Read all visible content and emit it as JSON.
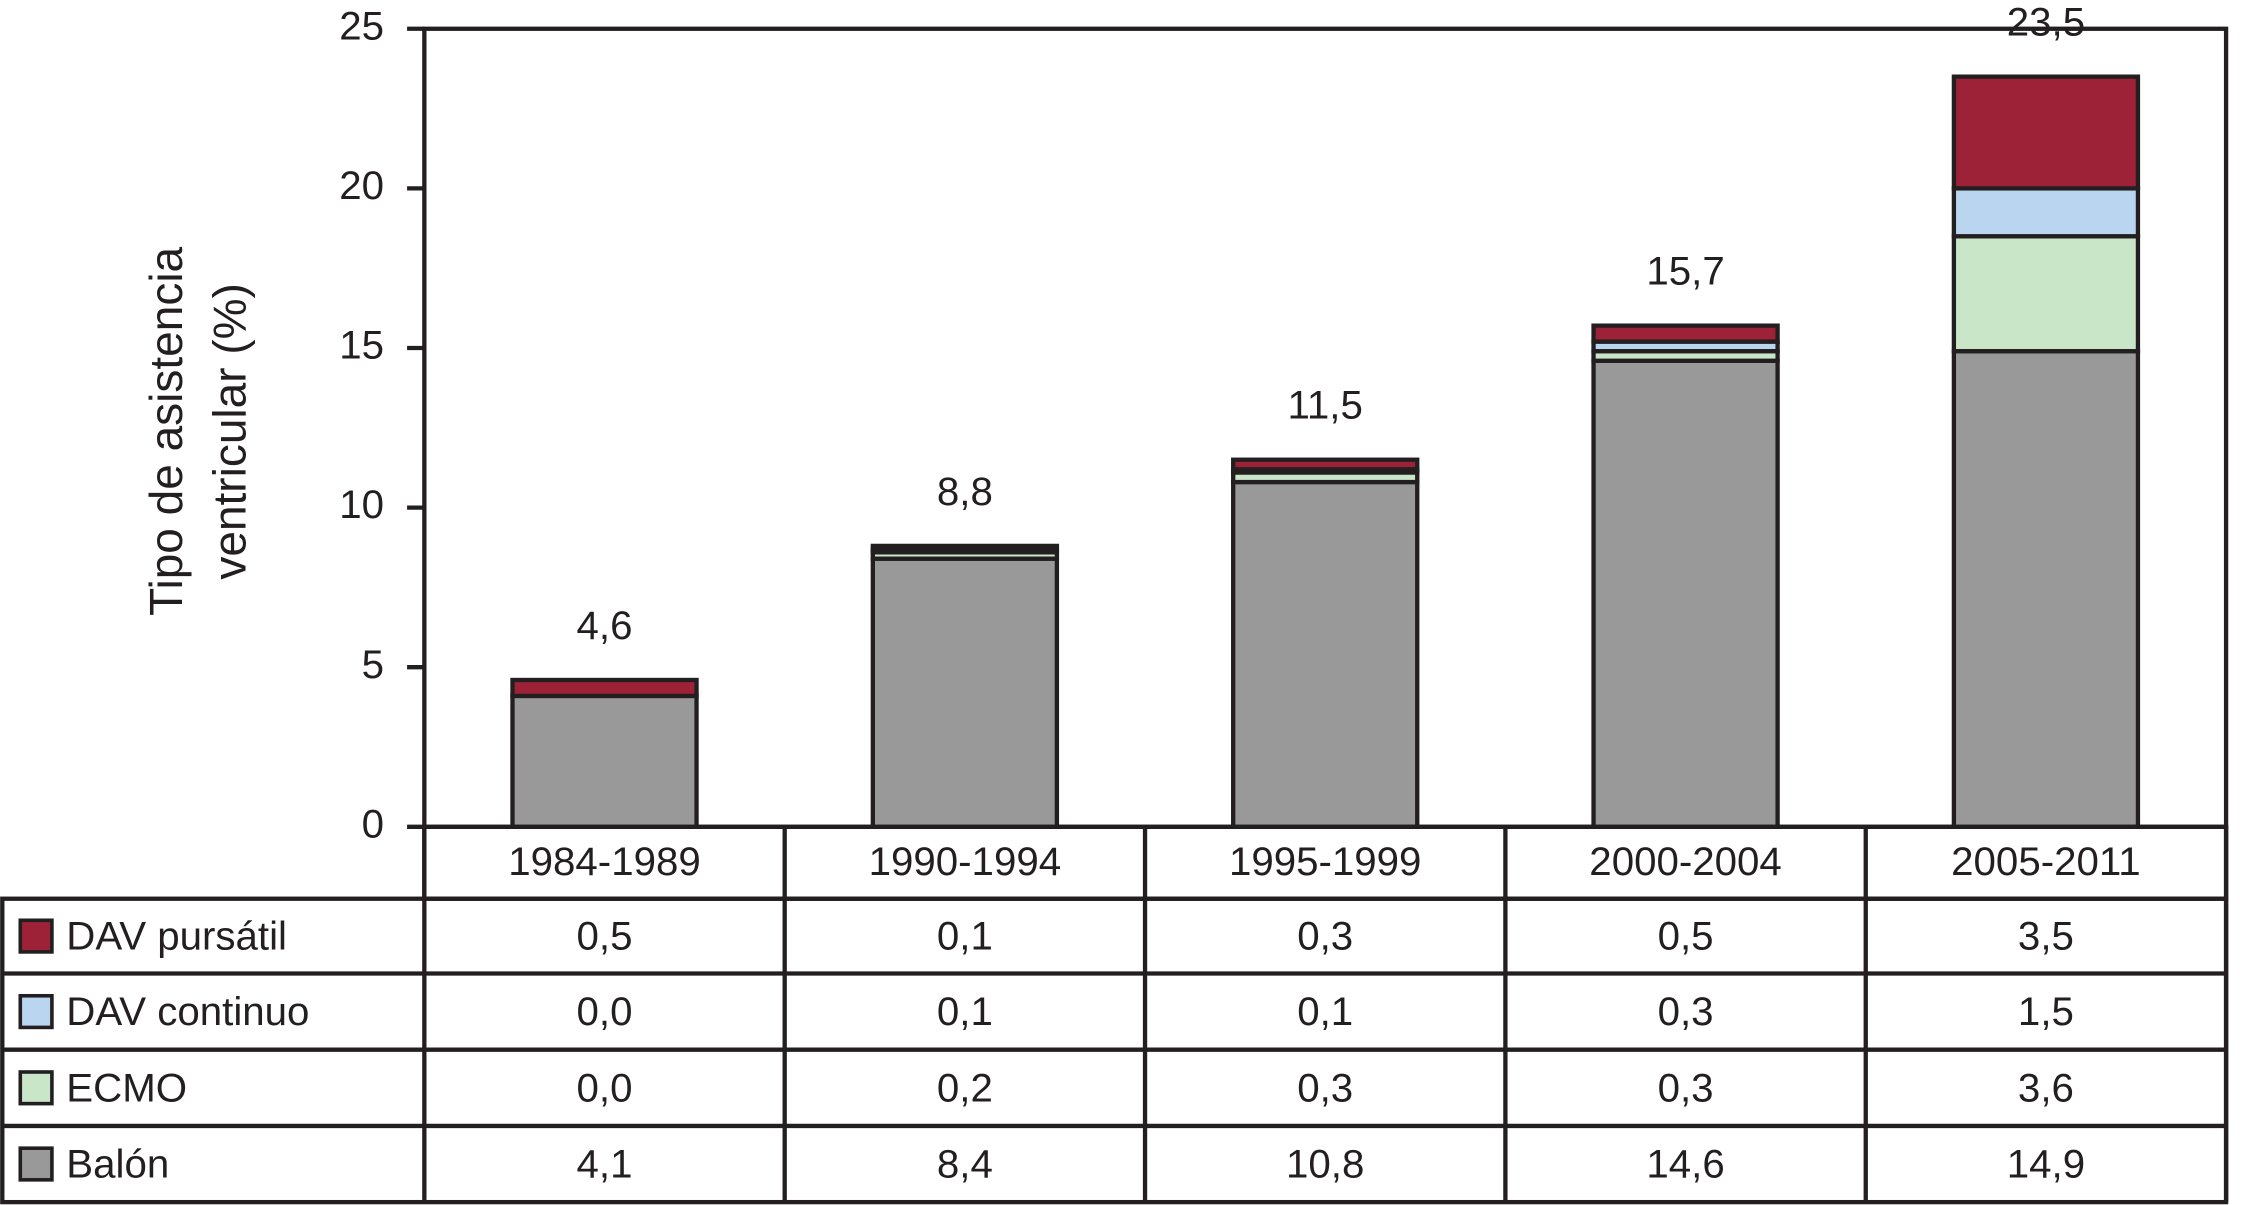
{
  "chart_data": {
    "type": "bar",
    "stacked": true,
    "ylabel": [
      "Tipo de asistencia",
      "ventricular (%)"
    ],
    "categories": [
      "1984-1989",
      "1990-1994",
      "1995-1999",
      "2000-2004",
      "2005-2011"
    ],
    "series": [
      {
        "name": "Balón",
        "color": "#999999",
        "values": [
          4.1,
          8.4,
          10.8,
          14.6,
          14.9
        ],
        "value_labels": [
          "4,1",
          "8,4",
          "10,8",
          "14,6",
          "14,9"
        ]
      },
      {
        "name": "ECMO",
        "color": "#c9e6c8",
        "values": [
          0.0,
          0.2,
          0.3,
          0.3,
          3.6
        ],
        "value_labels": [
          "0,0",
          "0,2",
          "0,3",
          "0,3",
          "3,6"
        ]
      },
      {
        "name": "DAV continuo",
        "color": "#b9d5ef",
        "values": [
          0.0,
          0.1,
          0.1,
          0.3,
          1.5
        ],
        "value_labels": [
          "0,0",
          "0,1",
          "0,1",
          "0,3",
          "1,5"
        ]
      },
      {
        "name": "DAV pursátil",
        "color": "#9d2237",
        "values": [
          0.5,
          0.1,
          0.3,
          0.5,
          3.5
        ],
        "value_labels": [
          "0,5",
          "0,1",
          "0,3",
          "0,5",
          "3,5"
        ]
      }
    ],
    "totals": [
      4.6,
      8.8,
      11.5,
      15.7,
      23.5
    ],
    "total_labels": [
      "4,6",
      "8,8",
      "11,5",
      "15,7",
      "23,5"
    ],
    "ylim": [
      0,
      25
    ],
    "yticks": [
      0,
      5,
      10,
      15,
      20,
      25
    ]
  }
}
